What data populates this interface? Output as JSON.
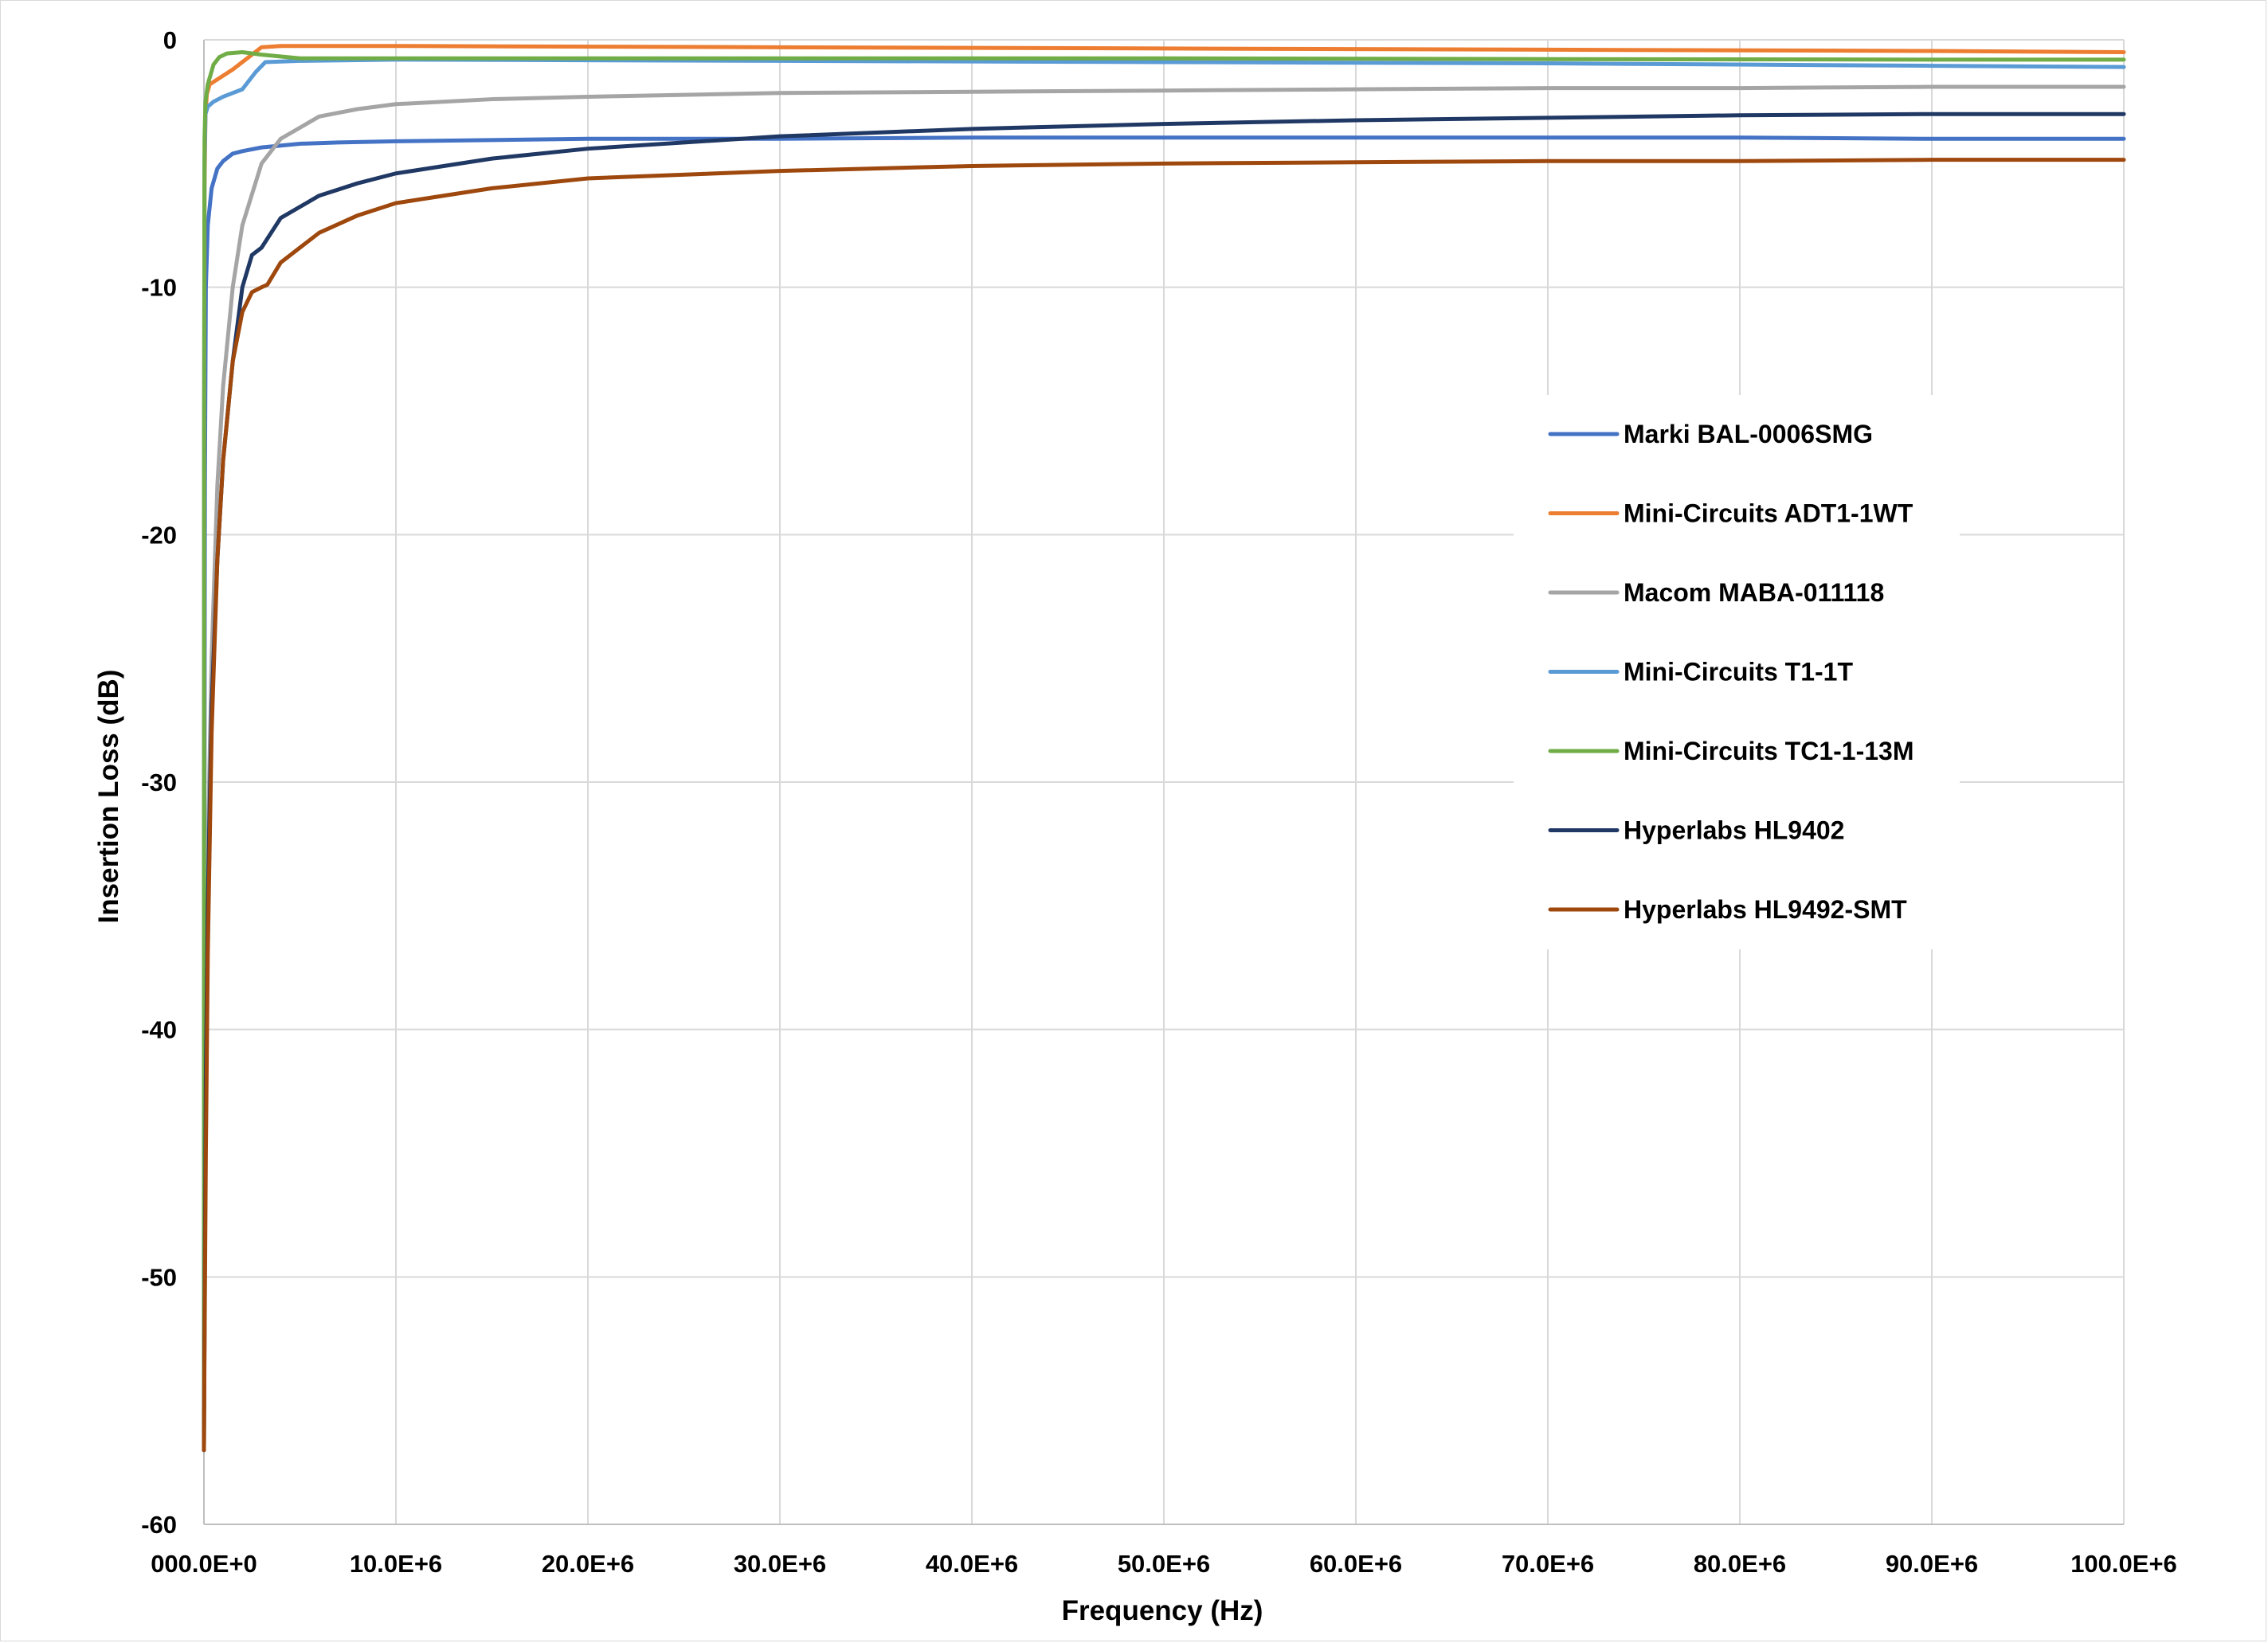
{
  "chart_data": {
    "type": "line",
    "title": "",
    "xlabel": "Frequency (Hz)",
    "ylabel": "Insertion Loss (dB)",
    "xlim": [
      0,
      100000000
    ],
    "ylim": [
      -60,
      0
    ],
    "grid": true,
    "legend_position": "right-middle",
    "x_ticks": [
      {
        "value": 0,
        "label": "000.0E+0"
      },
      {
        "value": 10000000,
        "label": "10.0E+6"
      },
      {
        "value": 20000000,
        "label": "20.0E+6"
      },
      {
        "value": 30000000,
        "label": "30.0E+6"
      },
      {
        "value": 40000000,
        "label": "40.0E+6"
      },
      {
        "value": 50000000,
        "label": "50.0E+6"
      },
      {
        "value": 60000000,
        "label": "60.0E+6"
      },
      {
        "value": 70000000,
        "label": "70.0E+6"
      },
      {
        "value": 80000000,
        "label": "80.0E+6"
      },
      {
        "value": 90000000,
        "label": "90.0E+6"
      },
      {
        "value": 100000000,
        "label": "100.0E+6"
      }
    ],
    "y_ticks": [
      {
        "value": 0,
        "label": "0"
      },
      {
        "value": -10,
        "label": "-10"
      },
      {
        "value": -20,
        "label": "-20"
      },
      {
        "value": -30,
        "label": "-30"
      },
      {
        "value": -40,
        "label": "-40"
      },
      {
        "value": -50,
        "label": "-50"
      },
      {
        "value": -60,
        "label": "-60"
      }
    ],
    "series": [
      {
        "name": "Marki BAL-0006SMG",
        "color": "#4472C4",
        "points": [
          [
            0,
            -57
          ],
          [
            20000,
            -35
          ],
          [
            50000,
            -18
          ],
          [
            100000,
            -10
          ],
          [
            200000,
            -7.5
          ],
          [
            400000,
            -6
          ],
          [
            700000,
            -5.2
          ],
          [
            1000000,
            -4.9
          ],
          [
            1500000,
            -4.6
          ],
          [
            2000000,
            -4.5
          ],
          [
            3000000,
            -4.35
          ],
          [
            5000000,
            -4.2
          ],
          [
            7000000,
            -4.15
          ],
          [
            10000000,
            -4.1
          ],
          [
            20000000,
            -4.0
          ],
          [
            30000000,
            -4.0
          ],
          [
            40000000,
            -3.95
          ],
          [
            50000000,
            -3.95
          ],
          [
            60000000,
            -3.95
          ],
          [
            70000000,
            -3.95
          ],
          [
            80000000,
            -3.95
          ],
          [
            90000000,
            -4.0
          ],
          [
            100000000,
            -4.0
          ]
        ]
      },
      {
        "name": "Mini-Circuits ADT1-1WT",
        "color": "#ED7D31",
        "points": [
          [
            0,
            -56
          ],
          [
            10000,
            -20
          ],
          [
            30000,
            -6
          ],
          [
            80000,
            -3
          ],
          [
            150000,
            -2.2
          ],
          [
            300000,
            -1.8
          ],
          [
            700000,
            -1.6
          ],
          [
            1500000,
            -1.2
          ],
          [
            2500000,
            -0.6
          ],
          [
            3000000,
            -0.3
          ],
          [
            4000000,
            -0.25
          ],
          [
            10000000,
            -0.25
          ],
          [
            30000000,
            -0.3
          ],
          [
            50000000,
            -0.35
          ],
          [
            70000000,
            -0.4
          ],
          [
            90000000,
            -0.45
          ],
          [
            100000000,
            -0.5
          ]
        ]
      },
      {
        "name": "Macom MABA-011118",
        "color": "#A5A5A5",
        "points": [
          [
            0,
            -56
          ],
          [
            30000,
            -50
          ],
          [
            100000,
            -40
          ],
          [
            200000,
            -33
          ],
          [
            400000,
            -25
          ],
          [
            700000,
            -18
          ],
          [
            1000000,
            -14
          ],
          [
            1500000,
            -10
          ],
          [
            2000000,
            -7.5
          ],
          [
            3000000,
            -5
          ],
          [
            4000000,
            -4
          ],
          [
            6000000,
            -3.1
          ],
          [
            8000000,
            -2.8
          ],
          [
            10000000,
            -2.6
          ],
          [
            15000000,
            -2.4
          ],
          [
            20000000,
            -2.3
          ],
          [
            30000000,
            -2.15
          ],
          [
            40000000,
            -2.1
          ],
          [
            50000000,
            -2.05
          ],
          [
            60000000,
            -2.0
          ],
          [
            70000000,
            -1.95
          ],
          [
            80000000,
            -1.95
          ],
          [
            90000000,
            -1.9
          ],
          [
            100000000,
            -1.9
          ]
        ]
      },
      {
        "name": "Mini-Circuits T1-1T",
        "color": "#5B9BD5",
        "points": [
          [
            0,
            -56
          ],
          [
            10000,
            -15
          ],
          [
            30000,
            -5
          ],
          [
            80000,
            -3
          ],
          [
            200000,
            -2.7
          ],
          [
            500000,
            -2.5
          ],
          [
            1000000,
            -2.3
          ],
          [
            2000000,
            -2.0
          ],
          [
            2700000,
            -1.3
          ],
          [
            3200000,
            -0.9
          ],
          [
            5000000,
            -0.85
          ],
          [
            10000000,
            -0.8
          ],
          [
            30000000,
            -0.85
          ],
          [
            50000000,
            -0.9
          ],
          [
            70000000,
            -0.95
          ],
          [
            90000000,
            -1.05
          ],
          [
            100000000,
            -1.1
          ]
        ]
      },
      {
        "name": "Mini-Circuits TC1-1-13M",
        "color": "#70AD47",
        "points": [
          [
            0,
            -56
          ],
          [
            10000,
            -15
          ],
          [
            30000,
            -4
          ],
          [
            80000,
            -2.5
          ],
          [
            200000,
            -1.8
          ],
          [
            500000,
            -1.0
          ],
          [
            800000,
            -0.7
          ],
          [
            1200000,
            -0.55
          ],
          [
            2000000,
            -0.5
          ],
          [
            3000000,
            -0.6
          ],
          [
            5000000,
            -0.75
          ],
          [
            10000000,
            -0.75
          ],
          [
            30000000,
            -0.75
          ],
          [
            50000000,
            -0.75
          ],
          [
            70000000,
            -0.78
          ],
          [
            90000000,
            -0.8
          ],
          [
            100000000,
            -0.8
          ]
        ]
      },
      {
        "name": "Hyperlabs HL9402",
        "color": "#203864",
        "points": [
          [
            0,
            -57
          ],
          [
            30000,
            -52
          ],
          [
            100000,
            -42
          ],
          [
            200000,
            -35
          ],
          [
            400000,
            -27
          ],
          [
            700000,
            -21
          ],
          [
            1000000,
            -17
          ],
          [
            1500000,
            -13
          ],
          [
            2000000,
            -10
          ],
          [
            2500000,
            -8.7
          ],
          [
            3000000,
            -8.4
          ],
          [
            4000000,
            -7.2
          ],
          [
            6000000,
            -6.3
          ],
          [
            8000000,
            -5.8
          ],
          [
            10000000,
            -5.4
          ],
          [
            15000000,
            -4.8
          ],
          [
            20000000,
            -4.4
          ],
          [
            30000000,
            -3.9
          ],
          [
            40000000,
            -3.6
          ],
          [
            50000000,
            -3.4
          ],
          [
            60000000,
            -3.25
          ],
          [
            70000000,
            -3.15
          ],
          [
            80000000,
            -3.05
          ],
          [
            90000000,
            -3.0
          ],
          [
            100000000,
            -3.0
          ]
        ]
      },
      {
        "name": "Hyperlabs HL9492-SMT",
        "color": "#9E480E",
        "points": [
          [
            0,
            -57
          ],
          [
            30000,
            -53
          ],
          [
            100000,
            -45
          ],
          [
            200000,
            -37
          ],
          [
            400000,
            -28
          ],
          [
            700000,
            -21
          ],
          [
            1000000,
            -17
          ],
          [
            1500000,
            -13
          ],
          [
            2000000,
            -11
          ],
          [
            2500000,
            -10.2
          ],
          [
            3000000,
            -10.0
          ],
          [
            3300000,
            -9.9
          ],
          [
            4000000,
            -9.0
          ],
          [
            6000000,
            -7.8
          ],
          [
            8000000,
            -7.1
          ],
          [
            10000000,
            -6.6
          ],
          [
            15000000,
            -6.0
          ],
          [
            20000000,
            -5.6
          ],
          [
            30000000,
            -5.3
          ],
          [
            40000000,
            -5.1
          ],
          [
            50000000,
            -5.0
          ],
          [
            60000000,
            -4.95
          ],
          [
            70000000,
            -4.9
          ],
          [
            80000000,
            -4.9
          ],
          [
            90000000,
            -4.85
          ],
          [
            100000000,
            -4.85
          ]
        ]
      }
    ]
  }
}
